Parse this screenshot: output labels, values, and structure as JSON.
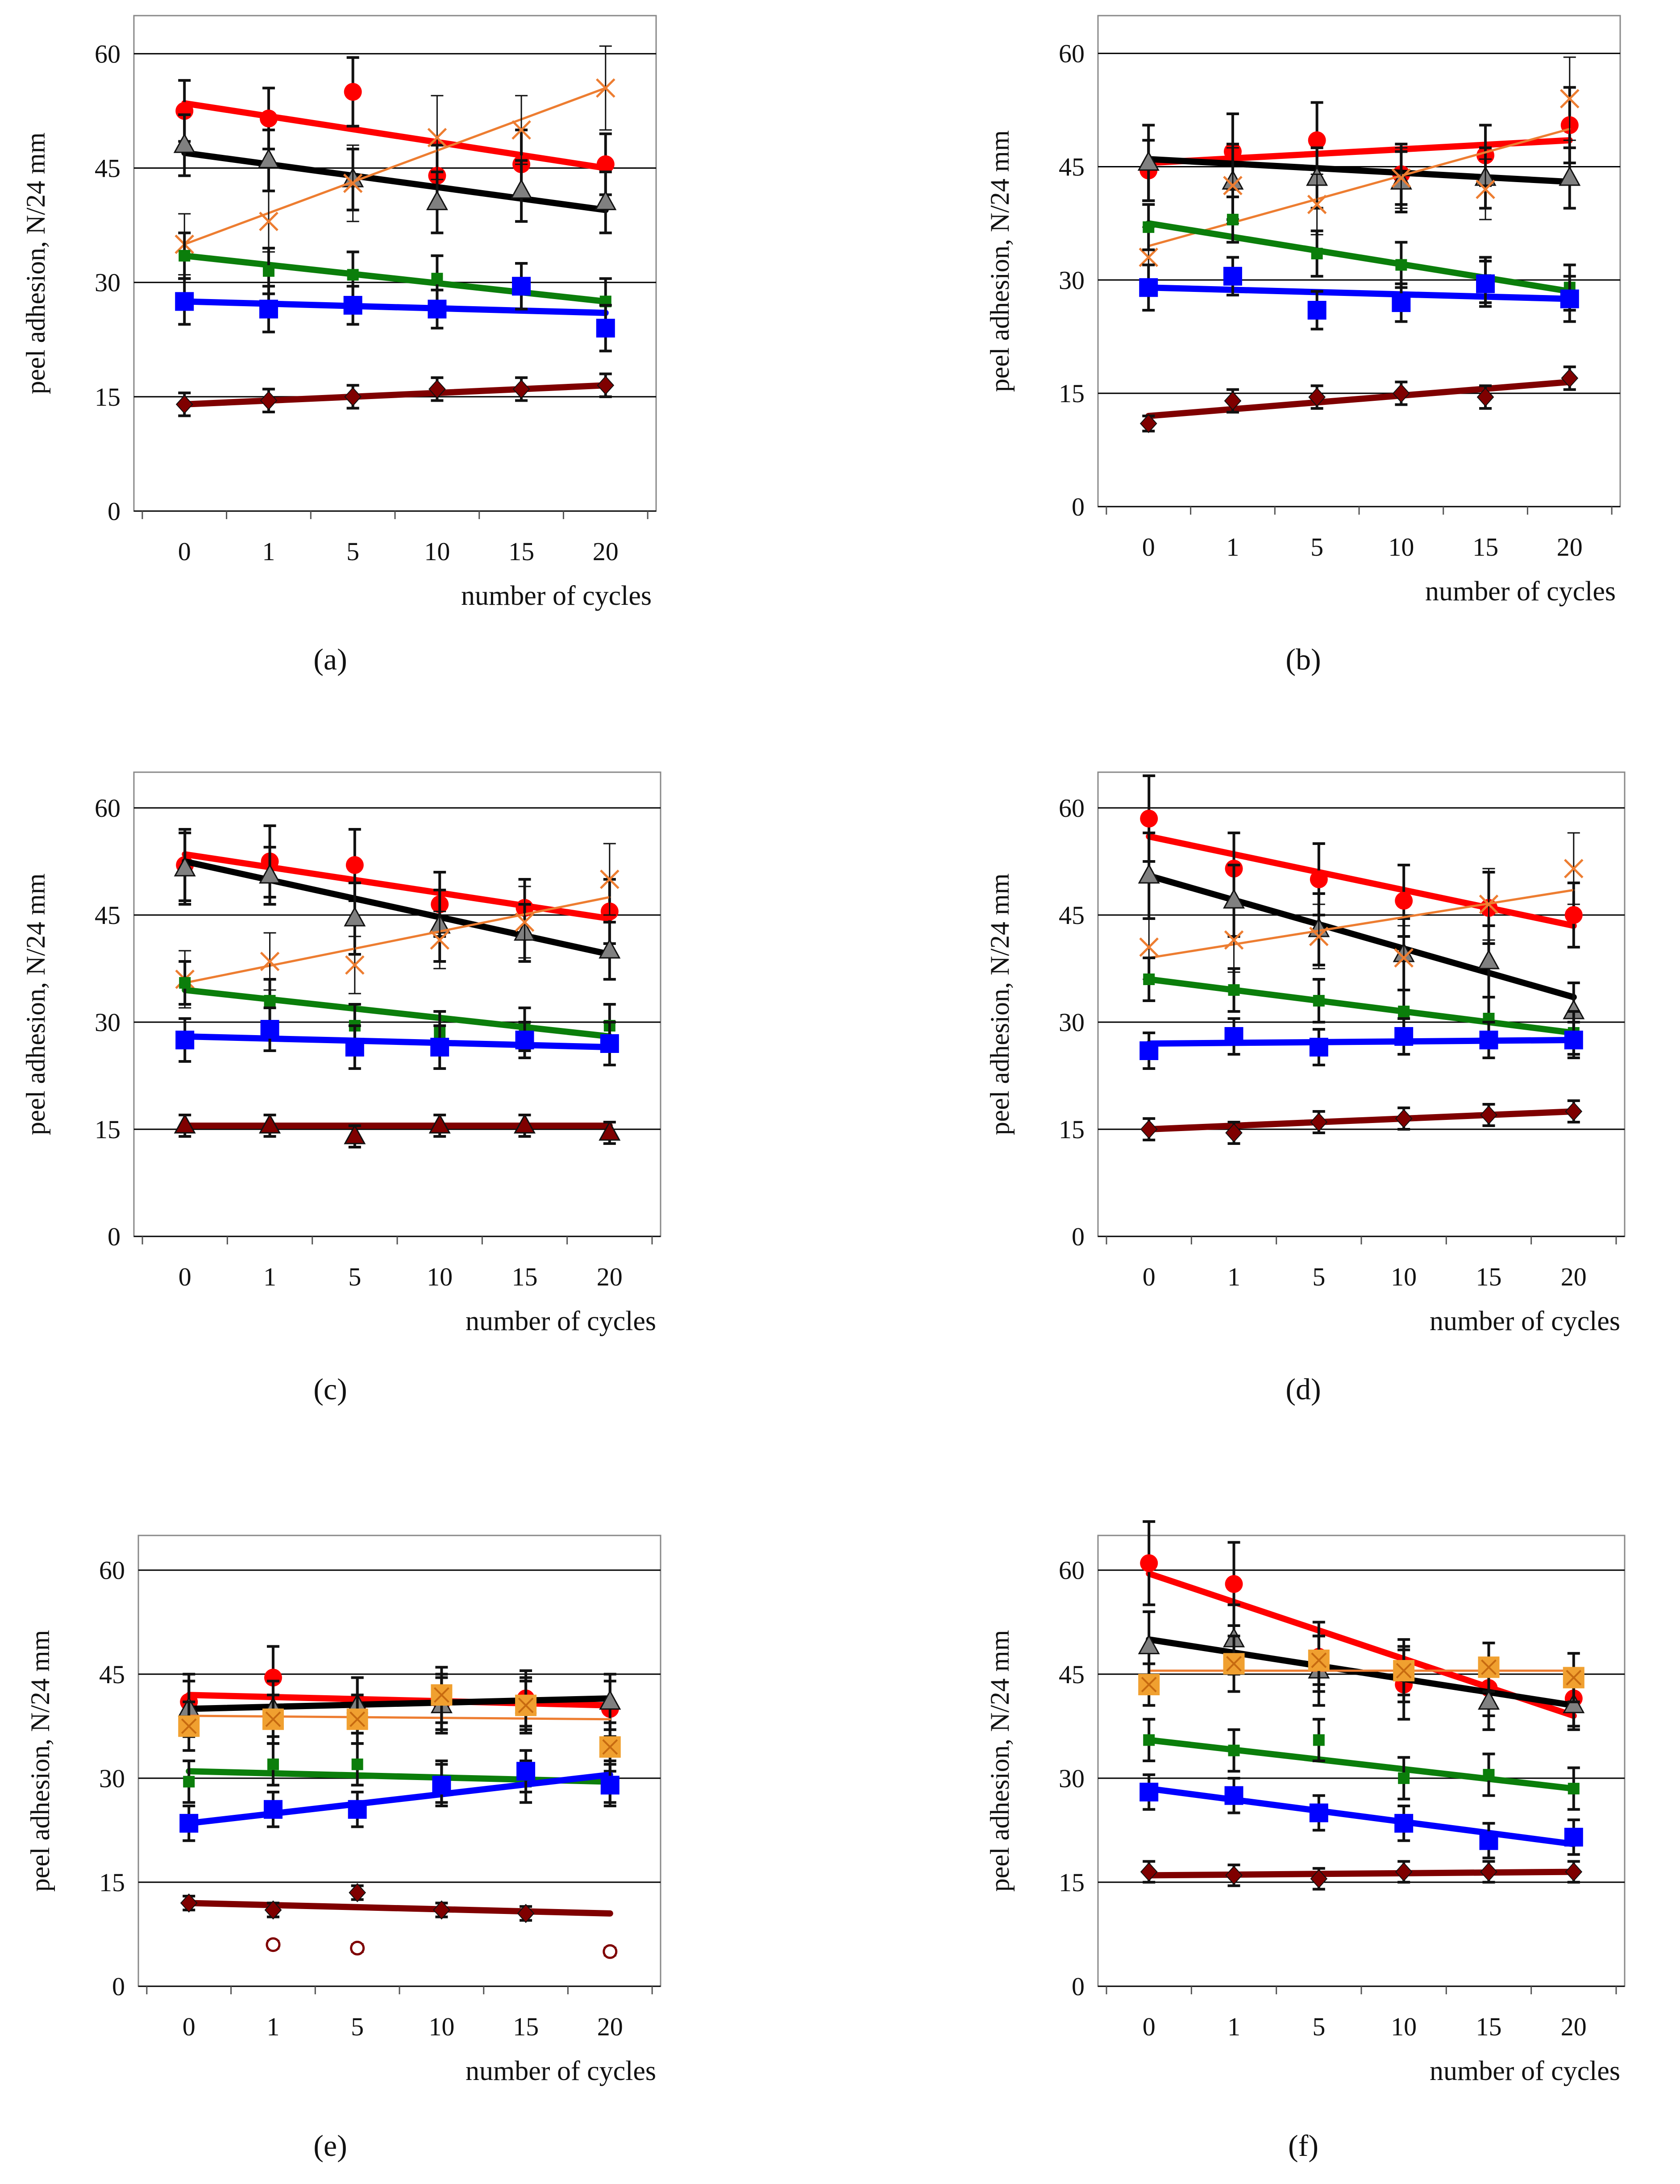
{
  "colors": {
    "red": "#ff0000",
    "black": "#000000",
    "orange": "#ed7d31",
    "green": "#0b7e0b",
    "blue": "#0000ff",
    "darkred": "#7f0000",
    "gray": "#808080",
    "orange_square": "#f0a030",
    "grid": "#000000"
  },
  "chart_data": [
    {
      "panel": "a",
      "caption": "(a)",
      "type": "scatter",
      "xlabel": "number of cycles",
      "ylabel": "peel adhesion, N/24 mm",
      "categories": [
        "0",
        "1",
        "5",
        "10",
        "15",
        "20"
      ],
      "ylim": [
        0,
        65
      ],
      "yticks": [
        0,
        15,
        30,
        45,
        60
      ],
      "grid": "horizontal",
      "series": [
        {
          "color": "red",
          "marker": "circle",
          "values": [
            52.5,
            51.5,
            55,
            44,
            45.5,
            45.5
          ],
          "err": [
            4,
            4,
            4.5,
            4,
            4.5,
            4
          ],
          "trend": [
            53.5,
            45
          ]
        },
        {
          "color": "black",
          "marker": "triangle",
          "values": [
            48,
            46,
            43.5,
            40.5,
            42,
            40.5
          ],
          "err": [
            4,
            4,
            4,
            4,
            4,
            4
          ],
          "trend": [
            47,
            39.5
          ]
        },
        {
          "color": "orange",
          "marker": "x",
          "values": [
            35,
            38,
            43,
            49,
            50,
            55.5
          ],
          "err": [
            4,
            4,
            5,
            5.5,
            4.5,
            5.5
          ],
          "trend": [
            35,
            55.5
          ]
        },
        {
          "color": "green",
          "marker": "dash",
          "values": [
            33.5,
            31.5,
            31,
            30.5,
            29.5,
            27.5
          ],
          "err": [
            3,
            3,
            3,
            3,
            3,
            3
          ],
          "trend": [
            33.5,
            27.5
          ]
        },
        {
          "color": "blue",
          "marker": "square",
          "values": [
            27.5,
            26.5,
            27,
            26.5,
            29.5,
            24
          ],
          "err": [
            3,
            3,
            2.5,
            2.5,
            3,
            3
          ],
          "trend": [
            27.5,
            26
          ]
        },
        {
          "color": "darkred",
          "marker": "diamond",
          "values": [
            14,
            14.5,
            15,
            16,
            16,
            16.5
          ],
          "err": [
            1.5,
            1.5,
            1.5,
            1.5,
            1.5,
            1.5
          ],
          "trend": [
            14,
            16.5
          ]
        }
      ]
    },
    {
      "panel": "b",
      "caption": "(b)",
      "type": "scatter",
      "xlabel": "number of cycles",
      "ylabel": "peel adhesion, N/24 mm",
      "categories": [
        "0",
        "1",
        "5",
        "10",
        "15",
        "20"
      ],
      "ylim": [
        0,
        65
      ],
      "yticks": [
        0,
        15,
        30,
        45,
        60
      ],
      "grid": "horizontal",
      "series": [
        {
          "color": "red",
          "marker": "circle",
          "values": [
            44.5,
            47,
            48.5,
            44,
            46.5,
            50.5
          ],
          "err": [
            4,
            5,
            5,
            4,
            4,
            5
          ],
          "trend": [
            45.5,
            48.5
          ]
        },
        {
          "color": "black",
          "marker": "triangle",
          "values": [
            45.5,
            43,
            43.5,
            43,
            43.5,
            43.5
          ],
          "err": [
            5,
            5,
            4,
            4,
            4,
            4
          ],
          "trend": [
            46,
            43
          ]
        },
        {
          "color": "orange",
          "marker": "x",
          "values": [
            33,
            42.5,
            40,
            43.5,
            42,
            54
          ],
          "err": [
            4,
            5,
            4,
            4,
            4,
            5.5
          ],
          "trend": [
            34.5,
            50
          ]
        },
        {
          "color": "green",
          "marker": "dash",
          "values": [
            37,
            38,
            33.5,
            32,
            30,
            29
          ],
          "err": [
            3,
            3,
            3,
            3,
            3,
            3
          ],
          "trend": [
            37.5,
            28.5
          ]
        },
        {
          "color": "blue",
          "marker": "square",
          "values": [
            29,
            30.5,
            26,
            27,
            29.5,
            27.5
          ],
          "err": [
            3,
            2.5,
            2.5,
            2.5,
            3,
            3
          ],
          "trend": [
            29,
            27.5
          ]
        },
        {
          "color": "darkred",
          "marker": "diamond",
          "values": [
            11,
            14,
            14.5,
            15,
            14.5,
            17
          ],
          "err": [
            1,
            1.5,
            1.5,
            1.5,
            1.5,
            1.5
          ],
          "trend": [
            12,
            16.5
          ]
        }
      ]
    },
    {
      "panel": "c",
      "caption": "(c)",
      "type": "scatter",
      "xlabel": "number of cycles",
      "ylabel": "peel adhesion, N/24 mm",
      "categories": [
        "0",
        "1",
        "5",
        "10",
        "15",
        "20"
      ],
      "ylim": [
        0,
        65
      ],
      "yticks": [
        0,
        15,
        30,
        45,
        60
      ],
      "grid": "horizontal",
      "series": [
        {
          "color": "red",
          "marker": "circle",
          "values": [
            52,
            52.5,
            52,
            46.5,
            46,
            45.5
          ],
          "err": [
            5,
            5,
            5,
            4.5,
            4,
            4.5
          ],
          "trend": [
            53.5,
            44.5
          ]
        },
        {
          "color": "black",
          "marker": "triangle",
          "values": [
            51.5,
            50.5,
            44.5,
            43.5,
            42.5,
            40
          ],
          "err": [
            5,
            4,
            5,
            5,
            4,
            4
          ],
          "trend": [
            52.5,
            39.5
          ]
        },
        {
          "color": "orange",
          "marker": "x",
          "values": [
            36,
            38.5,
            38,
            41.5,
            44,
            50
          ],
          "err": [
            4,
            4,
            4,
            4,
            5,
            5
          ],
          "trend": [
            35.5,
            47.5
          ]
        },
        {
          "color": "green",
          "marker": "dash",
          "values": [
            35.5,
            33,
            29.5,
            28.5,
            29,
            29.5
          ],
          "err": [
            3,
            3,
            3,
            3,
            3,
            3
          ],
          "trend": [
            34.5,
            28
          ]
        },
        {
          "color": "blue",
          "marker": "square",
          "values": [
            27.5,
            29,
            26.5,
            26.5,
            27.5,
            27
          ],
          "err": [
            3,
            3,
            3,
            3,
            2.5,
            3
          ],
          "trend": [
            28,
            26.5
          ]
        },
        {
          "color": "darkred",
          "marker": "triangle",
          "values": [
            15.5,
            15.5,
            14,
            15.5,
            15.5,
            14.5
          ],
          "err": [
            1.5,
            1.5,
            1.5,
            1.5,
            1.5,
            1.5
          ],
          "trend": [
            15.5,
            15.5
          ]
        }
      ]
    },
    {
      "panel": "d",
      "caption": "(d)",
      "type": "scatter",
      "xlabel": "number of cycles",
      "ylabel": "peel adhesion, N/24 mm",
      "categories": [
        "0",
        "1",
        "5",
        "10",
        "15",
        "20"
      ],
      "ylim": [
        0,
        65
      ],
      "yticks": [
        0,
        15,
        30,
        45,
        60
      ],
      "grid": "horizontal",
      "series": [
        {
          "color": "red",
          "marker": "circle",
          "values": [
            58.5,
            51.5,
            50,
            47,
            46,
            45
          ],
          "err": [
            6,
            5,
            5,
            5,
            5,
            4.5
          ],
          "trend": [
            56,
            43.5
          ]
        },
        {
          "color": "black",
          "marker": "triangle",
          "values": [
            50.5,
            47,
            43,
            39.5,
            38.5,
            31.5
          ],
          "err": [
            6,
            5,
            5,
            5,
            5,
            4
          ],
          "trend": [
            50.5,
            33.5
          ]
        },
        {
          "color": "orange",
          "marker": "x",
          "values": [
            40.5,
            41.5,
            42,
            39,
            46.5,
            51.5
          ],
          "err": [
            4.5,
            4.5,
            4.5,
            4.5,
            5,
            5
          ],
          "trend": [
            39,
            48.5
          ]
        },
        {
          "color": "green",
          "marker": "dash",
          "values": [
            36,
            34.5,
            33,
            31.5,
            30.5,
            28.5
          ],
          "err": [
            3,
            3,
            3,
            3,
            3,
            3
          ],
          "trend": [
            36,
            28.5
          ]
        },
        {
          "color": "blue",
          "marker": "square",
          "values": [
            26,
            28,
            26.5,
            28,
            27.5,
            27.5
          ],
          "err": [
            2.5,
            2.5,
            2.5,
            2.5,
            2.5,
            2.5
          ],
          "trend": [
            27,
            27.5
          ]
        },
        {
          "color": "darkred",
          "marker": "diamond",
          "values": [
            15,
            14.5,
            16,
            16.5,
            17,
            17.5
          ],
          "err": [
            1.5,
            1.5,
            1.5,
            1.5,
            1.5,
            1.5
          ],
          "trend": [
            15,
            17.5
          ]
        }
      ]
    },
    {
      "panel": "e",
      "caption": "(e)",
      "type": "scatter",
      "xlabel": "number of cycles",
      "ylabel": "peel adhesion, N/24 mm",
      "categories": [
        "0",
        "1",
        "5",
        "10",
        "15",
        "20"
      ],
      "ylim": [
        0,
        65
      ],
      "yticks": [
        0,
        15,
        30,
        45,
        60
      ],
      "grid": "horizontal",
      "series": [
        {
          "color": "red",
          "marker": "circle",
          "values": [
            41,
            44.5,
            40.5,
            41,
            41.5,
            40
          ],
          "err": [
            4,
            4.5,
            4,
            4,
            4,
            4
          ],
          "trend": [
            42,
            40.5
          ]
        },
        {
          "color": "black",
          "marker": "triangle",
          "values": [
            40,
            40,
            40.5,
            40.5,
            40.5,
            41
          ],
          "err": [
            4,
            4,
            4,
            4,
            4,
            4
          ],
          "trend": [
            40,
            41.5
          ]
        },
        {
          "color": "orange_square",
          "marker": "square-x",
          "values": [
            37.5,
            38.5,
            38.5,
            42,
            40.5,
            34.5
          ],
          "err": [
            3.5,
            3.5,
            3.5,
            4,
            3.5,
            3.5
          ],
          "trend": [
            39,
            38.5
          ]
        },
        {
          "color": "green",
          "marker": "dash",
          "values": [
            29.5,
            32,
            32,
            29.5,
            29.5,
            29.5
          ],
          "err": [
            3,
            3,
            3,
            3,
            3,
            3
          ],
          "trend": [
            31,
            29.5
          ]
        },
        {
          "color": "blue",
          "marker": "square",
          "values": [
            23.5,
            25.5,
            25.5,
            29,
            31,
            29
          ],
          "err": [
            2.5,
            2.5,
            2.5,
            3,
            3,
            3
          ],
          "trend": [
            23.5,
            30.5
          ]
        },
        {
          "color": "darkred",
          "marker": "diamond",
          "values": [
            12,
            11,
            13.5,
            11,
            10.5,
            null
          ],
          "err": [
            1,
            1,
            1,
            1,
            1,
            0
          ],
          "trend": [
            12,
            10.5
          ]
        },
        {
          "color": "darkred",
          "marker": "open-circle",
          "values": [
            null,
            6,
            5.5,
            null,
            null,
            5
          ],
          "err": [
            0,
            0.5,
            0.5,
            0,
            0,
            0.5
          ],
          "trend": null
        }
      ]
    },
    {
      "panel": "f",
      "caption": "(f)",
      "type": "scatter",
      "xlabel": "number of cycles",
      "ylabel": "peel adhesion, N/24 mm",
      "categories": [
        "0",
        "1",
        "5",
        "10",
        "15",
        "20"
      ],
      "ylim": [
        0,
        65
      ],
      "yticks": [
        0,
        15,
        30,
        45,
        60
      ],
      "grid": "horizontal",
      "series": [
        {
          "color": "red",
          "marker": "circle",
          "values": [
            61,
            58,
            47.5,
            43.5,
            43,
            41.5
          ],
          "err": [
            6,
            6,
            5,
            5,
            4,
            4
          ],
          "trend": [
            59.5,
            39
          ]
        },
        {
          "color": "black",
          "marker": "triangle",
          "values": [
            49,
            50,
            45.5,
            45.5,
            41,
            40.5
          ],
          "err": [
            5,
            5,
            5,
            4.5,
            4,
            3.5
          ],
          "trend": [
            50,
            40.5
          ]
        },
        {
          "color": "orange_square",
          "marker": "square-x",
          "values": [
            43.5,
            46.5,
            47,
            45.5,
            46,
            44.5
          ],
          "err": [
            3,
            4,
            3.5,
            3.5,
            3.5,
            3.5
          ],
          "trend": [
            45.5,
            45.5
          ]
        },
        {
          "color": "green",
          "marker": "dash",
          "values": [
            35.5,
            34,
            35.5,
            30,
            30.5,
            28.5
          ],
          "err": [
            3,
            3,
            3,
            3,
            3,
            3
          ],
          "trend": [
            35.5,
            28.5
          ]
        },
        {
          "color": "blue",
          "marker": "square",
          "values": [
            28,
            27.5,
            25,
            23.5,
            21,
            21.5
          ],
          "err": [
            2.5,
            2.5,
            2.5,
            2.5,
            2.5,
            2.5
          ],
          "trend": [
            28.5,
            20.5
          ]
        },
        {
          "color": "darkred",
          "marker": "diamond",
          "values": [
            16.5,
            16,
            15.5,
            16.5,
            16.5,
            16.5
          ],
          "err": [
            1.5,
            1.5,
            1.5,
            1.5,
            1.5,
            1.5
          ],
          "trend": [
            16,
            16.5
          ]
        }
      ]
    }
  ]
}
